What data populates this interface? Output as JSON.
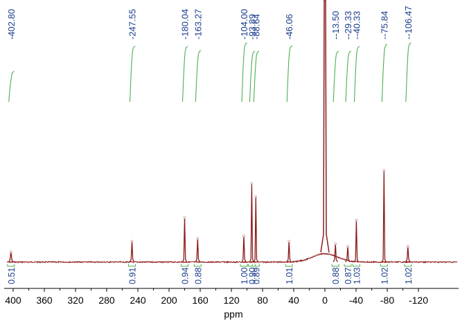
{
  "chart_data": {
    "type": "line",
    "xlabel": "ppm",
    "title": "",
    "xlim": [
      410,
      -135
    ],
    "x_ticks": [
      "400",
      "360",
      "320",
      "280",
      "240",
      "200",
      "160",
      "120",
      "80",
      "40",
      "0",
      "-40",
      "-80",
      "-120"
    ],
    "x_tick_values": [
      400,
      360,
      320,
      280,
      240,
      200,
      160,
      120,
      80,
      40,
      0,
      -40,
      -80,
      -120
    ],
    "peaks": [
      {
        "ppm": 402.8,
        "label": "402.80",
        "height": 0.04
      },
      {
        "ppm": 247.55,
        "label": "247.55",
        "height": 0.08
      },
      {
        "ppm": 180.04,
        "label": "180.04",
        "height": 0.17
      },
      {
        "ppm": 163.27,
        "label": "163.27",
        "height": 0.09
      },
      {
        "ppm": 104.0,
        "label": "104.00",
        "height": 0.1
      },
      {
        "ppm": 93.89,
        "label": "93.89",
        "height": 0.3
      },
      {
        "ppm": 88.64,
        "label": "88.64",
        "height": 0.25
      },
      {
        "ppm": 46.06,
        "label": "46.06",
        "height": 0.08
      },
      {
        "ppm": -13.5,
        "label": "-13.50",
        "height": 0.07
      },
      {
        "ppm": -29.33,
        "label": "-29.33",
        "height": 0.06
      },
      {
        "ppm": -40.33,
        "label": "-40.33",
        "height": 0.16
      },
      {
        "ppm": -75.84,
        "label": "-75.84",
        "height": 0.35
      },
      {
        "ppm": -106.47,
        "label": "-106.47",
        "height": 0.06
      }
    ],
    "solvent_peak_ppm": 0,
    "integrals": [
      {
        "ppm": 402.8,
        "value": "0.51"
      },
      {
        "ppm": 247.55,
        "value": "0.91"
      },
      {
        "ppm": 180.04,
        "value": "0.94"
      },
      {
        "ppm": 163.27,
        "value": "0.88"
      },
      {
        "ppm": 104.0,
        "value": "1.00"
      },
      {
        "ppm": 93.89,
        "value": "0.90"
      },
      {
        "ppm": 88.64,
        "value": "0.89"
      },
      {
        "ppm": 46.06,
        "value": "1.01"
      },
      {
        "ppm": -13.5,
        "value": "0.88"
      },
      {
        "ppm": -29.33,
        "value": "0.87"
      },
      {
        "ppm": -40.33,
        "value": "1.03"
      },
      {
        "ppm": -75.84,
        "value": "1.02"
      },
      {
        "ppm": -106.47,
        "value": "1.02"
      }
    ],
    "colors": {
      "spectrum": "#8b1a1a",
      "peak_label": "#1a3c8c",
      "integral_curve": "#4caf50",
      "integral_value": "#1a3c8c",
      "axis": "#000000"
    }
  }
}
